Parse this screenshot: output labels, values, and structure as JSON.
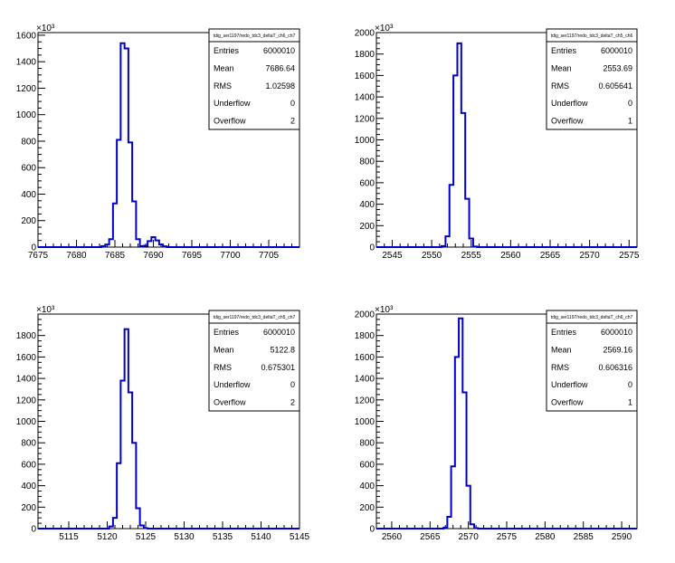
{
  "chart_data": [
    {
      "type": "histogram",
      "multiplier_label": "×10³",
      "stats_title": "tdig_ser1197/redo_tdc3_deltaT_ch6_ch7",
      "stats": [
        {
          "label": "Entries",
          "value": "6000010"
        },
        {
          "label": "Mean",
          "value": "7686.64"
        },
        {
          "label": "RMS",
          "value": "1.02598"
        },
        {
          "label": "Underflow",
          "value": "0"
        },
        {
          "label": "Overflow",
          "value": "2"
        }
      ],
      "xlim": [
        7675,
        7709
      ],
      "ylim": [
        0,
        1620
      ],
      "xticks": [
        7675,
        7680,
        7685,
        7690,
        7695,
        7700,
        7705
      ],
      "xtick_labels": [
        "7675",
        "7680",
        "7685",
        "7690",
        "7695",
        "7700",
        "7705"
      ],
      "yticks": [
        0,
        200,
        400,
        600,
        800,
        1000,
        1200,
        1400,
        1600
      ],
      "ytick_labels": [
        "0",
        "200",
        "400",
        "600",
        "800",
        "1000",
        "1200",
        "1400",
        "1600"
      ],
      "bin_width": 0.5,
      "bins": [
        {
          "x": 7683.5,
          "y": 8
        },
        {
          "x": 7684.0,
          "y": 20
        },
        {
          "x": 7684.5,
          "y": 60
        },
        {
          "x": 7685.0,
          "y": 330
        },
        {
          "x": 7685.5,
          "y": 810
        },
        {
          "x": 7686.0,
          "y": 1540
        },
        {
          "x": 7686.5,
          "y": 1500
        },
        {
          "x": 7687.0,
          "y": 790
        },
        {
          "x": 7687.5,
          "y": 345
        },
        {
          "x": 7688.0,
          "y": 60
        },
        {
          "x": 7688.5,
          "y": 8
        },
        {
          "x": 7689.0,
          "y": 10
        },
        {
          "x": 7689.5,
          "y": 45
        },
        {
          "x": 7690.0,
          "y": 75
        },
        {
          "x": 7690.5,
          "y": 50
        },
        {
          "x": 7691.0,
          "y": 20
        },
        {
          "x": 7691.5,
          "y": 6
        }
      ]
    },
    {
      "type": "histogram",
      "multiplier_label": "×10³",
      "stats_title": "tdig_ser1197/redo_tdc3_deltaT_ch5_ch6",
      "stats": [
        {
          "label": "Entries",
          "value": "6000010"
        },
        {
          "label": "Mean",
          "value": "2553.69"
        },
        {
          "label": "RMS",
          "value": "0.605641"
        },
        {
          "label": "Underflow",
          "value": "0"
        },
        {
          "label": "Overflow",
          "value": "1"
        }
      ],
      "xlim": [
        2543,
        2576
      ],
      "ylim": [
        0,
        2000
      ],
      "xticks": [
        2545,
        2550,
        2555,
        2560,
        2565,
        2570,
        2575
      ],
      "xtick_labels": [
        "2545",
        "2550",
        "2555",
        "2560",
        "2565",
        "2570",
        "2575"
      ],
      "yticks": [
        0,
        200,
        400,
        600,
        800,
        1000,
        1200,
        1400,
        1600,
        1800,
        2000
      ],
      "ytick_labels": [
        "0",
        "200",
        "400",
        "600",
        "800",
        "1000",
        "1200",
        "1400",
        "1600",
        "1800",
        "2000"
      ],
      "bin_width": 0.5,
      "bins": [
        {
          "x": 2551.5,
          "y": 10
        },
        {
          "x": 2552.0,
          "y": 100
        },
        {
          "x": 2552.5,
          "y": 580
        },
        {
          "x": 2553.0,
          "y": 1600
        },
        {
          "x": 2553.5,
          "y": 1900
        },
        {
          "x": 2554.0,
          "y": 1250
        },
        {
          "x": 2554.5,
          "y": 450
        },
        {
          "x": 2555.0,
          "y": 80
        },
        {
          "x": 2555.5,
          "y": 5
        }
      ]
    },
    {
      "type": "histogram",
      "multiplier_label": "×10³",
      "stats_title": "tdig_ser1197/redo_tdc3_deltaT_ch5_ch7",
      "stats": [
        {
          "label": "Entries",
          "value": "6000010"
        },
        {
          "label": "Mean",
          "value": "5122.8"
        },
        {
          "label": "RMS",
          "value": "0.675301"
        },
        {
          "label": "Underflow",
          "value": "0"
        },
        {
          "label": "Overflow",
          "value": "2"
        }
      ],
      "xlim": [
        5111,
        5145
      ],
      "ylim": [
        0,
        2000
      ],
      "xticks": [
        5115,
        5120,
        5125,
        5130,
        5135,
        5140,
        5145
      ],
      "xtick_labels": [
        "5115",
        "5120",
        "5125",
        "5130",
        "5135",
        "5140",
        "5145"
      ],
      "yticks": [
        0,
        200,
        400,
        600,
        800,
        1000,
        1200,
        1400,
        1600,
        1800
      ],
      "ytick_labels": [
        "0",
        "200",
        "400",
        "600",
        "800",
        "1000",
        "1200",
        "1400",
        "1600",
        "1800"
      ],
      "bin_width": 0.5,
      "bins": [
        {
          "x": 5120.5,
          "y": 20
        },
        {
          "x": 5121.0,
          "y": 100
        },
        {
          "x": 5121.5,
          "y": 610
        },
        {
          "x": 5122.0,
          "y": 1380
        },
        {
          "x": 5122.5,
          "y": 1860
        },
        {
          "x": 5123.0,
          "y": 1270
        },
        {
          "x": 5123.5,
          "y": 800
        },
        {
          "x": 5124.0,
          "y": 190
        },
        {
          "x": 5124.5,
          "y": 30
        },
        {
          "x": 5125.0,
          "y": 4
        }
      ]
    },
    {
      "type": "histogram",
      "multiplier_label": "×10³",
      "stats_title": "tdig_ser1197/redo_tdc3_deltaT_ch6_ch7",
      "stats": [
        {
          "label": "Entries",
          "value": "6000010"
        },
        {
          "label": "Mean",
          "value": "2569.16"
        },
        {
          "label": "RMS",
          "value": "0.606316"
        },
        {
          "label": "Underflow",
          "value": "0"
        },
        {
          "label": "Overflow",
          "value": "1"
        }
      ],
      "xlim": [
        2558,
        2592
      ],
      "ylim": [
        0,
        2000
      ],
      "xticks": [
        2560,
        2565,
        2570,
        2575,
        2580,
        2585,
        2590
      ],
      "xtick_labels": [
        "2560",
        "2565",
        "2570",
        "2575",
        "2580",
        "2585",
        "2590"
      ],
      "yticks": [
        0,
        200,
        400,
        600,
        800,
        1000,
        1200,
        1400,
        1600,
        1800,
        2000
      ],
      "ytick_labels": [
        "0",
        "200",
        "400",
        "600",
        "800",
        "1000",
        "1200",
        "1400",
        "1600",
        "1800",
        "2000"
      ],
      "bin_width": 0.5,
      "bins": [
        {
          "x": 2567.0,
          "y": 10
        },
        {
          "x": 2567.5,
          "y": 110
        },
        {
          "x": 2568.0,
          "y": 580
        },
        {
          "x": 2568.5,
          "y": 1600
        },
        {
          "x": 2569.0,
          "y": 1960
        },
        {
          "x": 2569.5,
          "y": 1270
        },
        {
          "x": 2570.0,
          "y": 400
        },
        {
          "x": 2570.5,
          "y": 40
        },
        {
          "x": 2571.0,
          "y": 4
        }
      ]
    }
  ],
  "colors": {
    "histogram_line": "#0000cc",
    "frame": "#000000",
    "background": "#ffffff"
  }
}
